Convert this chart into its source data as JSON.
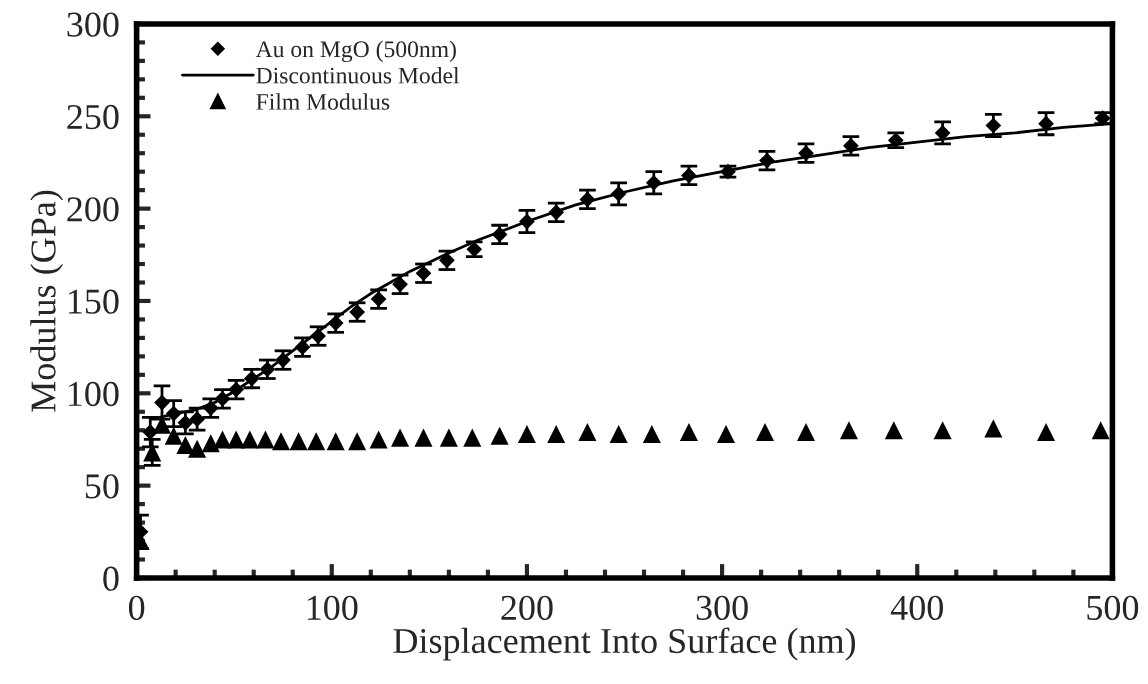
{
  "chart_data": {
    "type": "scatter",
    "xlabel": "Displacement Into Surface (nm)",
    "ylabel": "Modulus (GPa)",
    "xlim": [
      0,
      500
    ],
    "ylim": [
      0,
      300
    ],
    "xticks": [
      0,
      {
        "value": 20,
        "label": null
      },
      {
        "value": 40,
        "label": null
      },
      {
        "value": 60,
        "label": null
      },
      {
        "value": 80,
        "label": null
      },
      100,
      {
        "value": 120,
        "label": null
      },
      {
        "value": 140,
        "label": null
      },
      {
        "value": 160,
        "label": null
      },
      {
        "value": 180,
        "label": null
      },
      200,
      {
        "value": 220,
        "label": null
      },
      {
        "value": 240,
        "label": null
      },
      {
        "value": 260,
        "label": null
      },
      {
        "value": 280,
        "label": null
      },
      300,
      {
        "value": 320,
        "label": null
      },
      {
        "value": 340,
        "label": null
      },
      {
        "value": 360,
        "label": null
      },
      {
        "value": 380,
        "label": null
      },
      400,
      {
        "value": 420,
        "label": null
      },
      {
        "value": 440,
        "label": null
      },
      {
        "value": 460,
        "label": null
      },
      {
        "value": 480,
        "label": null
      },
      500
    ],
    "yticks": [
      0,
      {
        "value": 10,
        "label": null
      },
      {
        "value": 20,
        "label": null
      },
      {
        "value": 30,
        "label": null
      },
      {
        "value": 40,
        "label": null
      },
      50,
      {
        "value": 60,
        "label": null
      },
      {
        "value": 70,
        "label": null
      },
      {
        "value": 80,
        "label": null
      },
      {
        "value": 90,
        "label": null
      },
      100,
      {
        "value": 110,
        "label": null
      },
      {
        "value": 120,
        "label": null
      },
      {
        "value": 130,
        "label": null
      },
      {
        "value": 140,
        "label": null
      },
      150,
      {
        "value": 160,
        "label": null
      },
      {
        "value": 170,
        "label": null
      },
      {
        "value": 180,
        "label": null
      },
      {
        "value": 190,
        "label": null
      },
      200,
      {
        "value": 210,
        "label": null
      },
      {
        "value": 220,
        "label": null
      },
      {
        "value": 230,
        "label": null
      },
      {
        "value": 240,
        "label": null
      },
      250,
      {
        "value": 260,
        "label": null
      },
      {
        "value": 270,
        "label": null
      },
      {
        "value": 280,
        "label": null
      },
      {
        "value": 290,
        "label": null
      },
      300
    ],
    "grid": false,
    "legend": "top left",
    "series": [
      {
        "name": "Au on MgO (500nm)",
        "marker": "diamond",
        "color": "#000000",
        "x": [
          2,
          7,
          13,
          19,
          25,
          31,
          38,
          44,
          51,
          59,
          67,
          75,
          85,
          93,
          102,
          113,
          124,
          135,
          147,
          159,
          173,
          186,
          200,
          215,
          231,
          247,
          265,
          283,
          303,
          323,
          343,
          366,
          389,
          413,
          439,
          466,
          495
        ],
        "values": [
          25,
          79,
          95,
          89,
          84,
          86,
          92,
          97,
          102,
          108,
          113,
          118,
          125,
          131,
          138,
          144,
          151,
          159,
          165,
          172,
          178,
          186,
          193,
          198,
          205,
          208,
          214,
          218,
          220,
          226,
          230,
          234,
          237,
          241,
          245,
          246,
          249
        ],
        "errors": [
          9,
          8,
          9,
          7,
          6,
          6,
          5,
          5,
          5,
          5,
          5,
          5,
          5,
          5,
          5,
          5,
          5,
          5,
          5,
          5,
          4,
          5,
          6,
          5,
          5,
          6,
          6,
          5,
          3,
          5,
          5,
          5,
          4,
          6,
          6,
          6,
          3
        ]
      },
      {
        "name": "Discontinuous Model",
        "type": "line",
        "marker": "none",
        "line_style": "solid",
        "color": "#000000",
        "x": [
          8,
          20,
          30,
          40,
          50,
          60,
          70,
          80,
          90,
          100,
          110,
          120,
          130,
          140,
          150,
          160,
          175,
          190,
          200,
          225,
          250,
          275,
          300,
          325,
          350,
          375,
          400,
          425,
          450,
          475,
          500
        ],
        "values": [
          86,
          89,
          91,
          95,
          101,
          108,
          115,
          123,
          131,
          139,
          147,
          154,
          160,
          166,
          171,
          176,
          183,
          189,
          193,
          202,
          209,
          215,
          220,
          225,
          229,
          233,
          236,
          239,
          241,
          244,
          246
        ]
      },
      {
        "name": "Film Modulus",
        "marker": "triangle",
        "color": "#000000",
        "x": [
          2,
          8,
          13,
          19,
          25,
          31,
          38,
          44,
          51,
          58,
          66,
          74,
          83,
          92,
          102,
          113,
          124,
          135,
          147,
          160,
          172,
          186,
          200,
          215,
          231,
          247,
          264,
          283,
          302,
          322,
          343,
          365,
          388,
          413,
          439,
          466,
          494
        ],
        "values": [
          20,
          68,
          83,
          77,
          72,
          70,
          73,
          75,
          75,
          75,
          75,
          74,
          74,
          74,
          74,
          74,
          75,
          76,
          76,
          76,
          76,
          77,
          78,
          78,
          79,
          78,
          78,
          79,
          78,
          79,
          79,
          80,
          80,
          80,
          81,
          79,
          80
        ],
        "errors": [
          null,
          7,
          null,
          null,
          null,
          null,
          null,
          null,
          null,
          null,
          null,
          null,
          null,
          null,
          null,
          null,
          null,
          null,
          null,
          null,
          null,
          null,
          null,
          null,
          null,
          null,
          null,
          null,
          null,
          null,
          null,
          null,
          null,
          null,
          null,
          null,
          null
        ]
      }
    ]
  }
}
